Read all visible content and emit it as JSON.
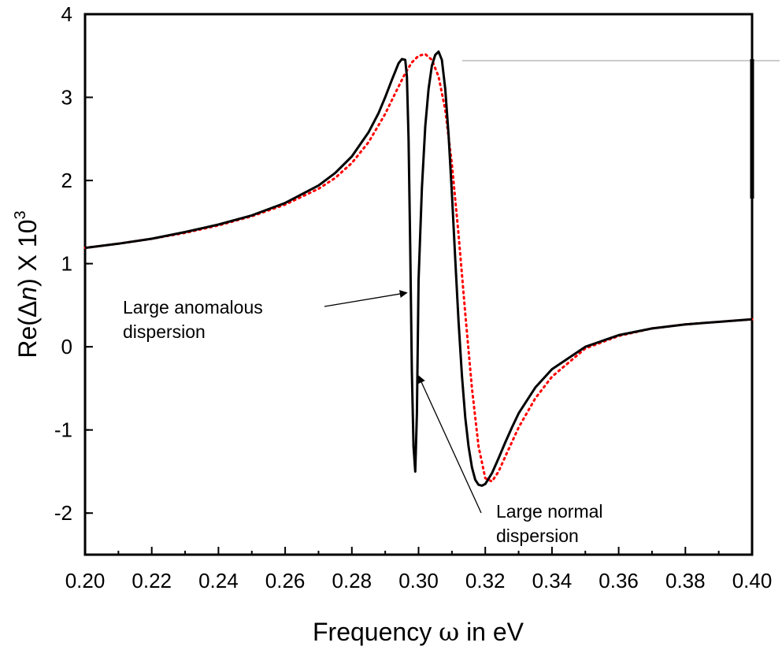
{
  "chart_data": {
    "type": "line",
    "xlabel_text": "Frequency",
    "xlabel_symbol": "ω",
    "xlabel_unit": "in eV",
    "ylabel_prefix": "Re(Δ",
    "ylabel_italic": "n",
    "ylabel_suffix": ") X 10",
    "ylabel_exponent": "3",
    "xlim": [
      0.2,
      0.4
    ],
    "ylim": [
      -2.5,
      4
    ],
    "x_ticks": [
      "0.20",
      "0.22",
      "0.24",
      "0.26",
      "0.28",
      "0.30",
      "0.32",
      "0.34",
      "0.36",
      "0.38",
      "0.40"
    ],
    "y_ticks": [
      "-2",
      "-1",
      "0",
      "1",
      "2",
      "3",
      "4"
    ],
    "grid": false,
    "series": [
      {
        "style": "solid",
        "color": "#000000",
        "x": [
          0.2,
          0.21,
          0.22,
          0.23,
          0.24,
          0.25,
          0.26,
          0.27,
          0.275,
          0.28,
          0.285,
          0.288,
          0.29,
          0.292,
          0.294,
          0.295,
          0.296,
          0.2965,
          0.297,
          0.2975,
          0.298,
          0.2985,
          0.299,
          0.2995,
          0.3,
          0.301,
          0.302,
          0.303,
          0.304,
          0.305,
          0.306,
          0.307,
          0.308,
          0.309,
          0.31,
          0.311,
          0.312,
          0.313,
          0.314,
          0.315,
          0.316,
          0.317,
          0.318,
          0.319,
          0.32,
          0.322,
          0.324,
          0.326,
          0.328,
          0.33,
          0.335,
          0.34,
          0.35,
          0.36,
          0.37,
          0.38,
          0.39,
          0.4
        ],
        "y": [
          1.19,
          1.24,
          1.3,
          1.38,
          1.47,
          1.58,
          1.73,
          1.94,
          2.09,
          2.29,
          2.58,
          2.81,
          3.0,
          3.21,
          3.41,
          3.46,
          3.45,
          3.25,
          2.5,
          1.2,
          -0.3,
          -1.2,
          -1.5,
          -0.8,
          0.8,
          1.9,
          2.65,
          3.1,
          3.38,
          3.51,
          3.55,
          3.45,
          3.1,
          2.55,
          1.85,
          1.05,
          0.3,
          -0.35,
          -0.85,
          -1.2,
          -1.45,
          -1.6,
          -1.66,
          -1.67,
          -1.65,
          -1.52,
          -1.34,
          -1.15,
          -0.97,
          -0.8,
          -0.49,
          -0.27,
          0.0,
          0.14,
          0.22,
          0.27,
          0.3,
          0.33
        ]
      },
      {
        "style": "dotted",
        "color": "#ff0000",
        "x": [
          0.2,
          0.21,
          0.22,
          0.23,
          0.24,
          0.25,
          0.26,
          0.27,
          0.275,
          0.28,
          0.285,
          0.29,
          0.293,
          0.296,
          0.298,
          0.3,
          0.302,
          0.304,
          0.306,
          0.308,
          0.31,
          0.312,
          0.314,
          0.316,
          0.318,
          0.32,
          0.322,
          0.324,
          0.326,
          0.33,
          0.335,
          0.34,
          0.35,
          0.36,
          0.37,
          0.38,
          0.39,
          0.4
        ],
        "y": [
          1.19,
          1.24,
          1.3,
          1.37,
          1.46,
          1.57,
          1.71,
          1.9,
          2.03,
          2.21,
          2.46,
          2.8,
          3.05,
          3.29,
          3.42,
          3.5,
          3.52,
          3.45,
          3.25,
          2.85,
          2.2,
          1.35,
          0.4,
          -0.5,
          -1.2,
          -1.58,
          -1.62,
          -1.5,
          -1.32,
          -0.97,
          -0.62,
          -0.36,
          -0.02,
          0.13,
          0.22,
          0.27,
          0.3,
          0.33
        ]
      }
    ],
    "annotations": [
      {
        "lines": [
          "Large anomalous",
          "dispersion"
        ],
        "arrow_to": [
          0.2965,
          0.65
        ]
      },
      {
        "lines": [
          "Large normal",
          "dispersion"
        ],
        "arrow_to": [
          0.3,
          -0.35
        ]
      }
    ]
  }
}
